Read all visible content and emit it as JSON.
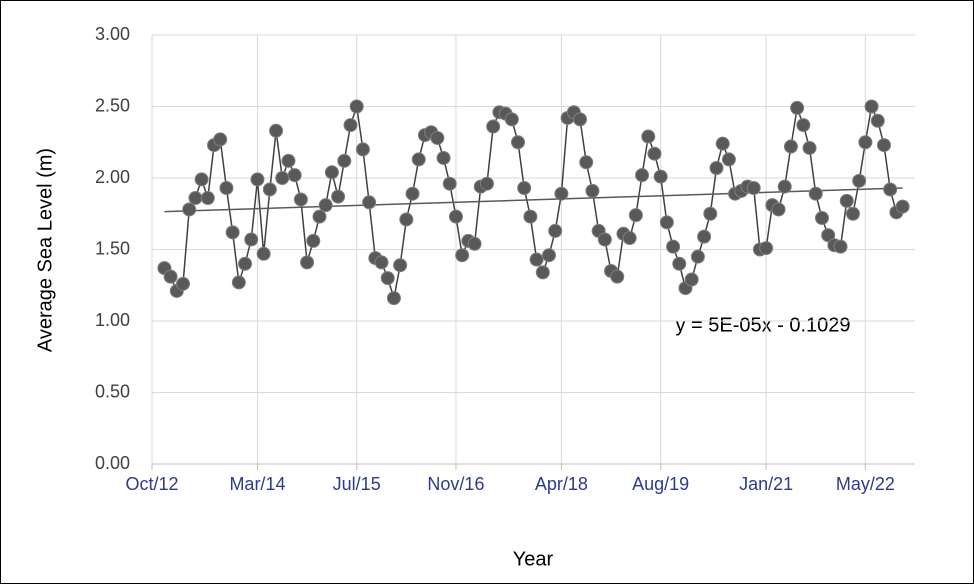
{
  "chart_data": {
    "type": "line",
    "x_label": "Year",
    "y_label": "Average Sea Level (m)",
    "x": [
      "2012-12",
      "2013-01",
      "2013-02",
      "2013-03",
      "2013-04",
      "2013-05",
      "2013-06",
      "2013-07",
      "2013-08",
      "2013-09",
      "2013-10",
      "2013-11",
      "2013-12",
      "2014-01",
      "2014-02",
      "2014-03",
      "2014-04",
      "2014-05",
      "2014-06",
      "2014-07",
      "2014-08",
      "2014-09",
      "2014-10",
      "2014-11",
      "2014-12",
      "2015-01",
      "2015-02",
      "2015-03",
      "2015-04",
      "2015-05",
      "2015-06",
      "2015-07",
      "2015-08",
      "2015-09",
      "2015-10",
      "2015-11",
      "2015-12",
      "2016-01",
      "2016-02",
      "2016-03",
      "2016-04",
      "2016-05",
      "2016-06",
      "2016-07",
      "2016-08",
      "2016-09",
      "2016-10",
      "2016-11",
      "2016-12",
      "2017-01",
      "2017-02",
      "2017-03",
      "2017-04",
      "2017-05",
      "2017-06",
      "2017-07",
      "2017-08",
      "2017-09",
      "2017-10",
      "2017-11",
      "2017-12",
      "2018-01",
      "2018-02",
      "2018-03",
      "2018-04",
      "2018-05",
      "2018-06",
      "2018-07",
      "2018-08",
      "2018-09",
      "2018-10",
      "2018-11",
      "2018-12",
      "2019-01",
      "2019-02",
      "2019-03",
      "2019-04",
      "2019-05",
      "2019-06",
      "2019-07",
      "2019-08",
      "2019-09",
      "2019-10",
      "2019-11",
      "2019-12",
      "2020-01",
      "2020-02",
      "2020-03",
      "2020-04",
      "2020-05",
      "2020-06",
      "2020-07",
      "2020-08",
      "2020-09",
      "2020-10",
      "2020-11",
      "2020-12",
      "2021-01",
      "2021-02",
      "2021-03",
      "2021-04",
      "2021-05",
      "2021-06",
      "2021-07",
      "2021-08",
      "2021-09",
      "2021-10",
      "2021-11",
      "2021-12",
      "2022-01",
      "2022-02",
      "2022-03",
      "2022-04",
      "2022-05",
      "2022-06",
      "2022-07",
      "2022-08",
      "2022-09",
      "2022-10",
      "2022-11"
    ],
    "series": [
      {
        "name": "Average Sea Level",
        "color": "#595959",
        "line_color": "#404040",
        "values": [
          1.37,
          1.31,
          1.21,
          1.26,
          1.78,
          1.86,
          1.99,
          1.86,
          2.23,
          2.27,
          1.93,
          1.62,
          1.27,
          1.4,
          1.57,
          1.99,
          1.47,
          1.92,
          2.33,
          2.0,
          2.12,
          2.02,
          1.85,
          1.41,
          1.56,
          1.73,
          1.81,
          2.04,
          1.87,
          2.12,
          2.37,
          2.5,
          2.2,
          1.83,
          1.44,
          1.41,
          1.3,
          1.16,
          1.39,
          1.71,
          1.89,
          2.13,
          2.3,
          2.32,
          2.28,
          2.14,
          1.96,
          1.73,
          1.46,
          1.56,
          1.54,
          1.94,
          1.96,
          2.36,
          2.46,
          2.45,
          2.41,
          2.25,
          1.93,
          1.73,
          1.43,
          1.34,
          1.46,
          1.63,
          1.89,
          2.42,
          2.46,
          2.41,
          2.11,
          1.91,
          1.63,
          1.57,
          1.35,
          1.31,
          1.61,
          1.58,
          1.74,
          2.02,
          2.29,
          2.17,
          2.01,
          1.69,
          1.52,
          1.4,
          1.23,
          1.29,
          1.45,
          1.59,
          1.75,
          2.07,
          2.24,
          2.13,
          1.89,
          1.91,
          1.94,
          1.93,
          1.5,
          1.51,
          1.81,
          1.78,
          1.94,
          2.22,
          2.49,
          2.37,
          2.21,
          1.89,
          1.72,
          1.6,
          1.53,
          1.52,
          1.84,
          1.75,
          1.98,
          2.25,
          2.5,
          2.4,
          2.23,
          1.92,
          1.76,
          1.8
        ]
      }
    ],
    "trendline": {
      "equation": "y = 5E-05x - 0.1029",
      "color": "#595959",
      "x": [
        "2012-12",
        "2022-11"
      ],
      "values": [
        1.765,
        1.93
      ]
    },
    "xlim": [
      "2012-10",
      "2023-01"
    ],
    "xticks": [
      {
        "value": "2012-10",
        "label": "Oct/12"
      },
      {
        "value": "2014-03",
        "label": "Mar/14"
      },
      {
        "value": "2015-07",
        "label": "Jul/15"
      },
      {
        "value": "2016-11",
        "label": "Nov/16"
      },
      {
        "value": "2018-04",
        "label": "Apr/18"
      },
      {
        "value": "2019-08",
        "label": "Aug/19"
      },
      {
        "value": "2021-01",
        "label": "Jan/21"
      },
      {
        "value": "2022-05",
        "label": "May/22"
      }
    ],
    "ylim": [
      0,
      3
    ],
    "yticks": [
      {
        "value": 0,
        "label": "0.00"
      },
      {
        "value": 0.5,
        "label": "0.50"
      },
      {
        "value": 1,
        "label": "1.00"
      },
      {
        "value": 1.5,
        "label": "1.50"
      },
      {
        "value": 2,
        "label": "2.00"
      },
      {
        "value": 2.5,
        "label": "2.50"
      },
      {
        "value": 3,
        "label": "3.00"
      }
    ],
    "grid": true
  }
}
